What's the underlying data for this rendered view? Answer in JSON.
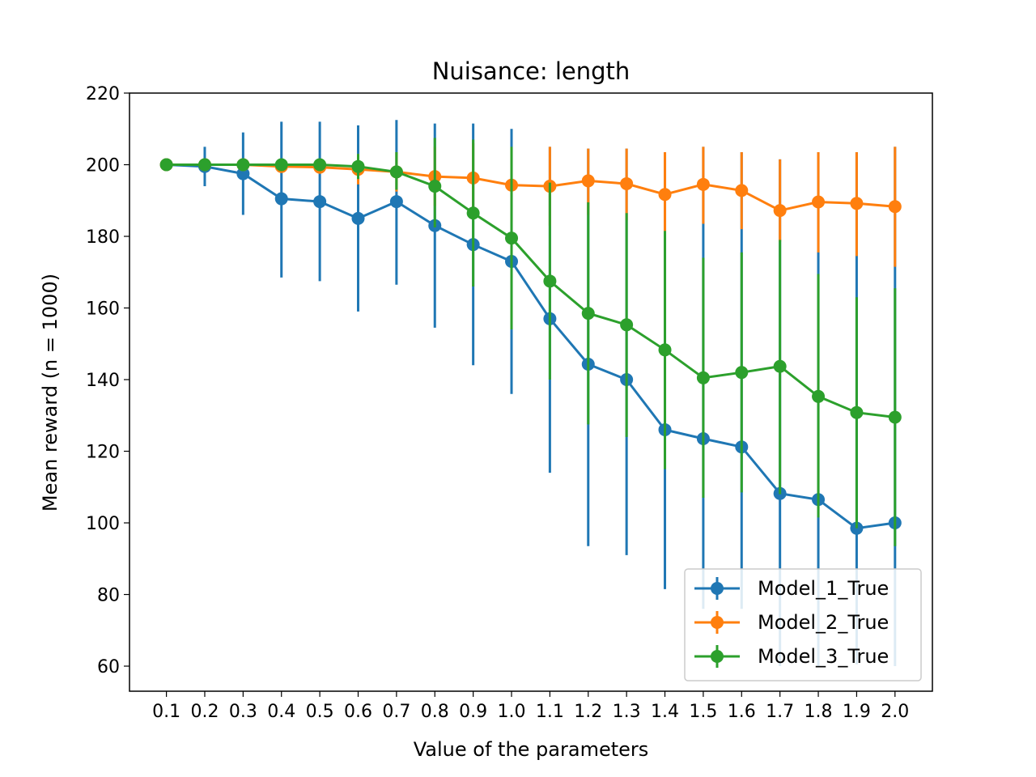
{
  "chart_data": {
    "type": "line",
    "title": "Nuisance: length",
    "xlabel": "Value of the parameters",
    "ylabel": "Mean reward (n = 1000)",
    "x": [
      "0.1",
      "0.2",
      "0.3",
      "0.4",
      "0.5",
      "0.6",
      "0.7",
      "0.8",
      "0.9",
      "1.0",
      "1.1",
      "1.2",
      "1.3",
      "1.4",
      "1.5",
      "1.6",
      "1.7",
      "1.8",
      "1.9",
      "2.0"
    ],
    "ylim": [
      53,
      220
    ],
    "yticks": [
      60,
      80,
      100,
      120,
      140,
      160,
      180,
      200,
      220
    ],
    "grid": false,
    "legend_position": "lower-right",
    "error_bars": true,
    "series": [
      {
        "name": "Model_1_True",
        "color": "#1f77b4",
        "values": [
          200,
          199.5,
          197.5,
          190.5,
          189.7,
          185,
          189.7,
          183,
          177.7,
          173,
          157,
          144.3,
          140,
          126,
          123.5,
          121.2,
          108.2,
          106.5,
          98.5,
          100
        ],
        "lower": [
          200,
          194,
          186,
          168.5,
          167.5,
          159,
          166.5,
          154.5,
          144,
          136,
          114,
          93.5,
          91,
          81.5,
          76,
          76,
          60,
          60,
          60.5,
          60
        ],
        "upper": [
          200,
          205,
          209,
          212,
          212,
          211,
          212.5,
          211.5,
          211.5,
          210,
          205,
          204.5,
          204.5,
          203.5,
          205,
          203.5,
          201.5,
          203.5,
          203.5,
          205
        ]
      },
      {
        "name": "Model_2_True",
        "color": "#ff7f0e",
        "values": [
          200,
          200,
          200,
          199.5,
          199.3,
          198.7,
          198,
          196.7,
          196.3,
          194.3,
          194,
          195.5,
          194.7,
          191.7,
          194.5,
          192.8,
          187.2,
          189.6,
          189.2,
          188.3
        ],
        "lower": [
          200,
          200,
          200,
          198.5,
          197.5,
          194.5,
          192.5,
          188.5,
          186.5,
          184,
          183,
          186,
          184.5,
          181.5,
          183.5,
          182,
          178.5,
          175.5,
          174.5,
          171.5
        ],
        "upper": [
          200,
          200,
          200,
          200.5,
          201,
          203,
          203.5,
          205,
          206,
          204.5,
          205,
          204.5,
          204.5,
          203.5,
          205,
          203.5,
          201.5,
          203.5,
          203.5,
          205
        ]
      },
      {
        "name": "Model_3_True",
        "color": "#2ca02c",
        "values": [
          200,
          200,
          200,
          200,
          200,
          199.5,
          198,
          194,
          186.5,
          179.5,
          167.5,
          158.5,
          155.3,
          148.3,
          140.5,
          142,
          143.7,
          135.3,
          130.8,
          129.5
        ],
        "lower": [
          200,
          200,
          200,
          199,
          198.5,
          196,
          193,
          182.5,
          166,
          154,
          140,
          127.5,
          124,
          115,
          107,
          108.5,
          108,
          101.5,
          98.5,
          93.5
        ],
        "upper": [
          200,
          200,
          200,
          201,
          201.5,
          203,
          203.5,
          207.5,
          207,
          205,
          195,
          189.5,
          186.5,
          181.5,
          174,
          175.5,
          179,
          169.5,
          163,
          165.5
        ]
      }
    ]
  }
}
